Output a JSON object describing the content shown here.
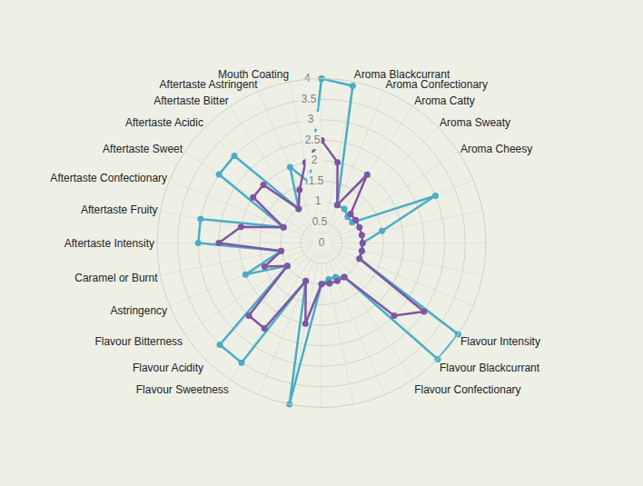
{
  "chart_data": {
    "type": "radar",
    "categories": [
      null,
      "Aroma Blackcurrant",
      "Aroma Confectionary",
      "Aroma Catty",
      "Aroma Sweaty",
      "Aroma Cheesy",
      null,
      null,
      null,
      null,
      null,
      "Flavour Intensity",
      "Flavour Blackcurrant",
      "Flavour Confectionary",
      null,
      null,
      null,
      null,
      null,
      "Flavour Sweetness",
      "Flavour Acidity",
      "Flavour Bitterness",
      "Astringency",
      "Caramel or Burnt",
      "Aftertaste Intensity",
      "Aftertaste Fruity",
      "Aftertaste Confectionary",
      "Aftertaste Sweet",
      "Aftertaste Acidic",
      "Aftertaste Bitter",
      "Aftertaste Astringent",
      "Mouth Coating"
    ],
    "series": [
      {
        "color": "#4bacc6",
        "values": [
          4.0,
          3.9,
          1.0,
          1.0,
          0.9,
          0.9,
          3.0,
          1.5,
          1.0,
          1.0,
          1.0,
          4.0,
          4.0,
          1.0,
          0.9,
          0.9,
          1.0,
          4.0,
          1.0,
          3.5,
          3.5,
          1.0,
          2.0,
          1.0,
          3.0,
          3.0,
          1.0,
          3.0,
          3.0,
          1.0,
          2.0,
          1.5
        ]
      },
      {
        "color": "#7f56a1",
        "values": [
          2.5,
          2.0,
          1.0,
          2.0,
          1.0,
          1.0,
          1.0,
          1.0,
          1.0,
          1.0,
          1.0,
          3.0,
          2.5,
          1.0,
          1.0,
          1.0,
          1.0,
          2.0,
          1.0,
          2.5,
          2.5,
          1.0,
          1.5,
          1.0,
          2.5,
          2.0,
          1.0,
          2.0,
          2.0,
          1.0,
          1.4,
          2.0
        ]
      }
    ],
    "ylim": [
      0,
      4
    ],
    "yticks": [
      0,
      0.5,
      1,
      1.5,
      2,
      2.5,
      3,
      3.5,
      4
    ],
    "grid": true,
    "marker": "circle"
  }
}
